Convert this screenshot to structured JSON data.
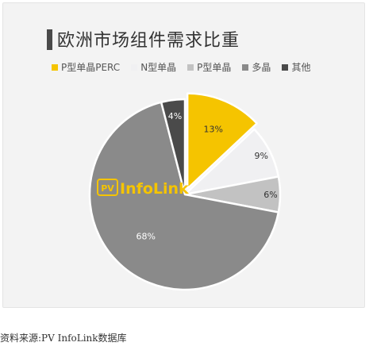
{
  "chart_data": {
    "type": "pie",
    "title": "欧洲市场组件需求比重",
    "categories": [
      "P型单晶PERC",
      "N型单晶",
      "P型单晶",
      "多晶",
      "其他"
    ],
    "values": [
      13,
      9,
      6,
      68,
      4
    ],
    "labels": [
      "13%",
      "9%",
      "6%",
      "68%",
      "4%"
    ],
    "colors": [
      "#f5c400",
      "#f0f0f2",
      "#c2c2c2",
      "#8a8a8a",
      "#4a4a4a"
    ],
    "legend_position": "top",
    "exploded_slice": "P型单晶PERC"
  },
  "watermark": {
    "prefix": "PV",
    "text": "InfoLink",
    "color": "#f5c400"
  },
  "source": "资料来源:PV InfoLink数据库"
}
